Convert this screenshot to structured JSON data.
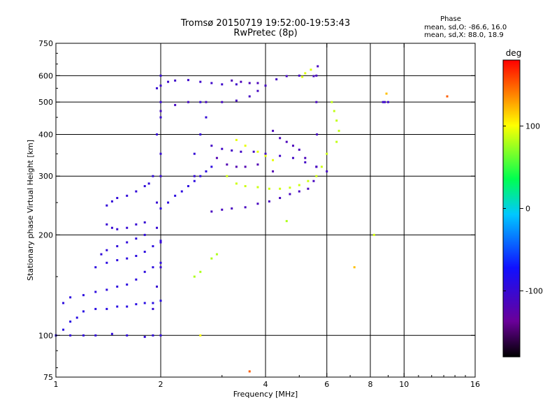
{
  "header": {
    "title_line1": "Tromsø 20150719 19:52:00-19:53:43",
    "title_line2": "RwPretec (8p)"
  },
  "phase_box": {
    "title": "Phase",
    "line1": "mean, sd,O: -86.6, 16.0",
    "line2": "mean, sd,X:  88.0, 18.9"
  },
  "colorbar": {
    "title": "deg",
    "ticks": [
      {
        "label": "100",
        "value": 100
      },
      {
        "label": "0",
        "value": 0
      },
      {
        "label": "-100",
        "value": -100
      }
    ],
    "range": [
      -180,
      180
    ],
    "colormap": "rainbow: black-purple-blue-cyan-green-yellow-orange-red"
  },
  "chart_data": {
    "type": "scatter",
    "title": "Tromsø 20150719 19:52:00-19:53:43",
    "subtitle": "RwPretec (8p)",
    "xlabel": "Frequency [MHz]",
    "ylabel": "Stationary phase Virtual Height [km]",
    "x_scale": "log",
    "y_scale": "log",
    "xlim": [
      1,
      16
    ],
    "ylim": [
      75,
      750
    ],
    "x_ticks": [
      {
        "label": "1",
        "value": 1
      },
      {
        "label": "2",
        "value": 2
      },
      {
        "label": "4",
        "value": 4
      },
      {
        "label": "6",
        "value": 6
      },
      {
        "label": "8",
        "value": 8
      },
      {
        "label": "10",
        "value": 10
      },
      {
        "label": "16",
        "value": 16
      }
    ],
    "y_ticks": [
      {
        "label": "75",
        "value": 75
      },
      {
        "label": "100",
        "value": 100
      },
      {
        "label": "200",
        "value": 200
      },
      {
        "label": "300",
        "value": 300
      },
      {
        "label": "400",
        "value": 400
      },
      {
        "label": "500",
        "value": 500
      },
      {
        "label": "600",
        "value": 600
      },
      {
        "label": "750",
        "value": 750
      }
    ],
    "x_grid": [
      2,
      4,
      6,
      8,
      10
    ],
    "y_grid": [
      100,
      200,
      300,
      400,
      500,
      600
    ],
    "grid": true,
    "color_encoding": "phase (deg)",
    "series": [
      {
        "name": "O-mode",
        "traces": [
          {
            "points": [
              [
                1.0,
                100
              ],
              [
                1.1,
                100
              ],
              [
                1.2,
                100
              ],
              [
                1.3,
                100
              ],
              [
                1.45,
                101
              ],
              [
                1.6,
                100
              ],
              [
                1.8,
                99
              ],
              [
                1.9,
                100
              ],
              [
                2.0,
                100
              ]
            ],
            "phase": -95
          },
          {
            "points": [
              [
                1.0,
                100
              ],
              [
                1.05,
                104
              ],
              [
                1.1,
                110
              ],
              [
                1.15,
                113
              ],
              [
                1.2,
                118
              ],
              [
                1.3,
                120
              ],
              [
                1.4,
                120
              ],
              [
                1.5,
                122
              ],
              [
                1.6,
                122
              ],
              [
                1.7,
                124
              ],
              [
                1.8,
                125
              ],
              [
                1.9,
                125
              ],
              [
                2.0,
                127
              ]
            ],
            "phase": -90
          },
          {
            "points": [
              [
                1.05,
                125
              ],
              [
                1.1,
                130
              ],
              [
                1.2,
                132
              ],
              [
                1.3,
                135
              ],
              [
                1.4,
                137
              ],
              [
                1.5,
                140
              ],
              [
                1.6,
                142
              ],
              [
                1.7,
                147
              ],
              [
                1.8,
                155
              ],
              [
                1.9,
                160
              ],
              [
                2.0,
                165
              ]
            ],
            "phase": -93
          },
          {
            "points": [
              [
                1.3,
                160
              ],
              [
                1.4,
                165
              ],
              [
                1.5,
                168
              ],
              [
                1.6,
                170
              ],
              [
                1.7,
                173
              ],
              [
                1.8,
                178
              ],
              [
                1.9,
                185
              ],
              [
                2.0,
                192
              ]
            ],
            "phase": -92
          },
          {
            "points": [
              [
                1.35,
                175
              ],
              [
                1.4,
                180
              ],
              [
                1.5,
                185
              ],
              [
                1.6,
                190
              ],
              [
                1.7,
                195
              ],
              [
                1.8,
                200
              ]
            ],
            "phase": -95
          },
          {
            "points": [
              [
                1.4,
                215
              ],
              [
                1.45,
                210
              ],
              [
                1.5,
                208
              ],
              [
                1.6,
                210
              ],
              [
                1.7,
                215
              ],
              [
                1.8,
                218
              ]
            ],
            "phase": -100
          },
          {
            "points": [
              [
                1.4,
                245
              ],
              [
                1.45,
                252
              ],
              [
                1.5,
                258
              ],
              [
                1.6,
                262
              ],
              [
                1.7,
                270
              ],
              [
                1.8,
                280
              ],
              [
                1.85,
                285
              ],
              [
                1.9,
                300
              ]
            ],
            "phase": -96
          },
          {
            "points": [
              [
                1.9,
                120
              ],
              [
                1.95,
                140
              ],
              [
                2.0,
                160
              ],
              [
                2.0,
                190
              ],
              [
                1.95,
                210
              ],
              [
                1.95,
                250
              ],
              [
                2.0,
                300
              ],
              [
                2.0,
                350
              ],
              [
                1.95,
                400
              ],
              [
                2.0,
                450
              ],
              [
                2.0,
                500
              ],
              [
                1.95,
                550
              ],
              [
                2.0,
                600
              ]
            ],
            "phase": -100
          },
          {
            "points": [
              [
                2.0,
                240
              ],
              [
                2.1,
                250
              ],
              [
                2.2,
                262
              ],
              [
                2.3,
                270
              ],
              [
                2.4,
                280
              ],
              [
                2.5,
                290
              ],
              [
                2.6,
                300
              ],
              [
                2.7,
                310
              ],
              [
                2.8,
                320
              ]
            ],
            "phase": -92
          },
          {
            "points": [
              [
                2.0,
                470
              ],
              [
                2.2,
                490
              ],
              [
                2.4,
                500
              ],
              [
                2.7,
                500
              ],
              [
                3.0,
                500
              ],
              [
                3.3,
                505
              ],
              [
                3.6,
                520
              ],
              [
                3.8,
                540
              ],
              [
                4.0,
                560
              ],
              [
                4.3,
                585
              ],
              [
                4.6,
                598
              ],
              [
                5.0,
                600
              ],
              [
                5.5,
                598
              ]
            ],
            "phase": -110
          },
          {
            "points": [
              [
                2.0,
                560
              ],
              [
                2.1,
                575
              ],
              [
                2.2,
                580
              ],
              [
                2.4,
                582
              ],
              [
                2.6,
                575
              ],
              [
                2.8,
                570
              ],
              [
                3.0,
                565
              ],
              [
                3.3,
                565
              ]
            ],
            "phase": -105
          },
          {
            "points": [
              [
                3.2,
                580
              ],
              [
                3.4,
                575
              ],
              [
                3.6,
                570
              ],
              [
                3.8,
                570
              ]
            ],
            "phase": -115
          },
          {
            "points": [
              [
                2.8,
                370
              ],
              [
                3.0,
                362
              ],
              [
                3.2,
                358
              ],
              [
                3.4,
                355
              ],
              [
                3.7,
                355
              ],
              [
                4.0,
                350
              ],
              [
                4.4,
                345
              ],
              [
                4.8,
                340
              ],
              [
                5.2,
                330
              ],
              [
                5.6,
                320
              ],
              [
                6.0,
                310
              ]
            ],
            "phase": -108
          },
          {
            "points": [
              [
                2.8,
                235
              ],
              [
                3.0,
                238
              ],
              [
                3.2,
                240
              ],
              [
                3.5,
                242
              ],
              [
                3.8,
                248
              ],
              [
                4.1,
                252
              ],
              [
                4.4,
                258
              ],
              [
                4.7,
                265
              ],
              [
                5.0,
                270
              ],
              [
                5.3,
                275
              ],
              [
                5.5,
                290
              ],
              [
                5.6,
                320
              ],
              [
                5.62,
                400
              ],
              [
                5.6,
                500
              ],
              [
                5.6,
                600
              ],
              [
                5.65,
                640
              ]
            ],
            "phase": -112
          },
          {
            "points": [
              [
                2.5,
                300
              ],
              [
                2.5,
                350
              ],
              [
                2.6,
                400
              ],
              [
                2.7,
                450
              ],
              [
                2.6,
                500
              ]
            ],
            "phase": -98
          },
          {
            "points": [
              [
                2.9,
                340
              ],
              [
                3.1,
                325
              ],
              [
                3.3,
                320
              ],
              [
                3.5,
                320
              ],
              [
                3.8,
                325
              ],
              [
                4.2,
                310
              ]
            ],
            "phase": -120
          },
          {
            "points": [
              [
                4.2,
                410
              ],
              [
                4.4,
                390
              ],
              [
                4.6,
                380
              ],
              [
                4.8,
                370
              ],
              [
                5.0,
                360
              ],
              [
                5.2,
                340
              ]
            ],
            "phase": -115
          },
          {
            "points": [
              [
                8.7,
                500
              ],
              [
                8.8,
                500
              ],
              [
                9.0,
                500
              ]
            ],
            "phase": -105
          }
        ]
      },
      {
        "name": "X-mode",
        "traces": [
          {
            "points": [
              [
                3.1,
                300
              ],
              [
                3.3,
                285
              ],
              [
                3.5,
                280
              ],
              [
                3.8,
                278
              ],
              [
                4.1,
                275
              ],
              [
                4.4,
                275
              ],
              [
                4.7,
                277
              ],
              [
                5.0,
                282
              ],
              [
                5.3,
                290
              ],
              [
                5.6,
                300
              ],
              [
                5.8,
                320
              ],
              [
                6.0,
                350
              ]
            ],
            "phase": 88
          },
          {
            "points": [
              [
                3.3,
                385
              ],
              [
                3.5,
                370
              ],
              [
                3.8,
                355
              ],
              [
                4.0,
                345
              ],
              [
                4.2,
                335
              ]
            ],
            "phase": 95
          },
          {
            "points": [
              [
                6.2,
                500
              ],
              [
                6.3,
                470
              ],
              [
                6.4,
                440
              ],
              [
                6.5,
                410
              ],
              [
                6.4,
                380
              ]
            ],
            "phase": 85
          },
          {
            "points": [
              [
                5.1,
                595
              ],
              [
                5.2,
                610
              ],
              [
                5.4,
                625
              ]
            ],
            "phase": 92
          },
          {
            "points": [
              [
                2.8,
                170
              ],
              [
                2.9,
                175
              ],
              [
                2.6,
                155
              ],
              [
                2.5,
                150
              ]
            ],
            "phase": 80
          }
        ]
      }
    ],
    "isolated_points": [
      {
        "x": 13.3,
        "y": 520,
        "phase": 150
      },
      {
        "x": 7.2,
        "y": 160,
        "phase": 120
      },
      {
        "x": 3.6,
        "y": 78,
        "phase": 150
      },
      {
        "x": 8.9,
        "y": 530,
        "phase": 120
      },
      {
        "x": 8.2,
        "y": 200,
        "phase": 90
      },
      {
        "x": 4.6,
        "y": 220,
        "phase": 80
      },
      {
        "x": 2.6,
        "y": 100,
        "phase": 100
      }
    ]
  }
}
